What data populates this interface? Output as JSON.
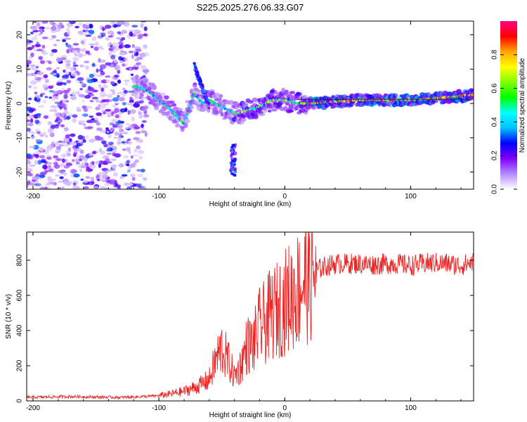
{
  "title": "S225.2025.276.06.33.G07",
  "chart_data": [
    {
      "type": "heatmap",
      "title": "S225.2025.276.06.33.G07",
      "xlabel": "Height of straight line (km)",
      "ylabel": "Frequency (Hz)",
      "xlim": [
        -205,
        150
      ],
      "ylim": [
        -25,
        24
      ],
      "xticks": [
        -200,
        -100,
        0,
        100
      ],
      "yticks": [
        -20,
        -10,
        0,
        10,
        20
      ],
      "colorbar": {
        "label": "Normalized spectral amplitude",
        "range": [
          0,
          1
        ],
        "ticks": [
          "0.0",
          "0.2",
          "0.4",
          "0.6",
          "0.8"
        ],
        "tick_values": [
          0,
          0.2,
          0.4,
          0.6,
          0.8
        ],
        "colormap": [
          "#ffffff",
          "#b28cff",
          "#8000ff",
          "#0000ff",
          "#00bfff",
          "#00ffff",
          "#00ff00",
          "#80ff00",
          "#ffff00",
          "#ffa500",
          "#ff0000",
          "#ff0080"
        ]
      },
      "ridge": {
        "x": [
          -120,
          -110,
          -100,
          -90,
          -80,
          -72,
          -65,
          -60,
          -55,
          -50,
          -45,
          -38,
          -30,
          -20,
          -10,
          0,
          10,
          20,
          40,
          60,
          80,
          100,
          120,
          150
        ],
        "y": [
          5,
          4,
          1,
          -2,
          -6,
          3,
          0,
          1,
          0,
          -1,
          -2,
          -3,
          -2,
          -1,
          1,
          1,
          0,
          0,
          0.5,
          1,
          1,
          1,
          1.5,
          2.5
        ]
      }
    },
    {
      "type": "line",
      "xlabel": "Height of straight line (km)",
      "ylabel": "SNR (10 * v/v)",
      "xlim": [
        -205,
        150
      ],
      "ylim": [
        0,
        960
      ],
      "xticks": [
        -200,
        -100,
        0,
        100
      ],
      "yticks": [
        0,
        200,
        400,
        600,
        800
      ],
      "series": [
        {
          "name": "SNR",
          "color": "#ee2222",
          "x": [
            -205,
            -190,
            -170,
            -150,
            -130,
            -110,
            -100,
            -90,
            -80,
            -70,
            -60,
            -55,
            -50,
            -45,
            -40,
            -35,
            -30,
            -25,
            -20,
            -15,
            -10,
            -5,
            0,
            5,
            10,
            15,
            20,
            25,
            30,
            40,
            50,
            60,
            70,
            80,
            90,
            100,
            110,
            120,
            130,
            140,
            150
          ],
          "values": [
            20,
            22,
            25,
            22,
            20,
            25,
            30,
            40,
            55,
            80,
            120,
            230,
            300,
            230,
            140,
            200,
            320,
            320,
            420,
            450,
            500,
            520,
            560,
            600,
            630,
            690,
            700,
            740,
            760,
            780,
            780,
            780,
            775,
            780,
            780,
            770,
            780,
            785,
            780,
            770,
            790
          ]
        }
      ]
    }
  ]
}
